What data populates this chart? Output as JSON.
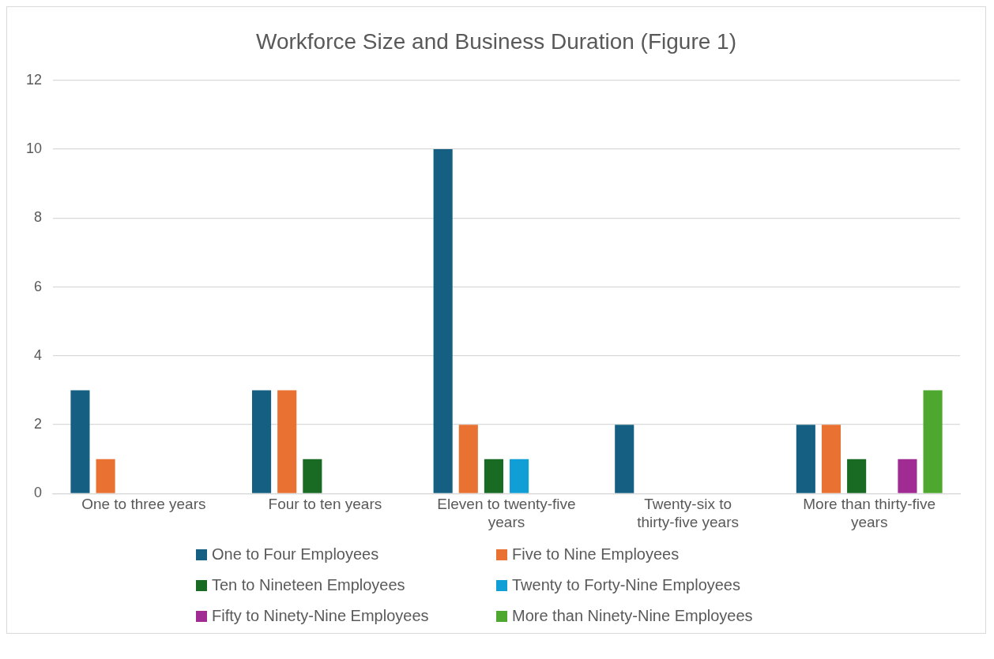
{
  "chart_data": {
    "type": "bar",
    "title": "Workforce Size and Business Duration (Figure 1)",
    "categories": [
      "One to three years",
      "Four to ten years",
      "Eleven to twenty-five years",
      "Twenty-six to thirty-five years",
      "More than thirty-five years"
    ],
    "series": [
      {
        "name": "One to Four Employees",
        "color": "#156082",
        "values": [
          3,
          3,
          10,
          2,
          2
        ]
      },
      {
        "name": "Five to Nine Employees",
        "color": "#e97132",
        "values": [
          1,
          3,
          2,
          0,
          2
        ]
      },
      {
        "name": "Ten to Nineteen Employees",
        "color": "#196b24",
        "values": [
          0,
          1,
          1,
          0,
          1
        ]
      },
      {
        "name": "Twenty to Forty-Nine Employees",
        "color": "#0f9ed5",
        "values": [
          0,
          0,
          1,
          0,
          0
        ]
      },
      {
        "name": "Fifty to Ninety-Nine Employees",
        "color": "#a02b93",
        "values": [
          0,
          0,
          0,
          0,
          1
        ]
      },
      {
        "name": "More than Ninety-Nine Employees",
        "color": "#4ea72e",
        "values": [
          0,
          0,
          0,
          0,
          3
        ]
      }
    ],
    "ylim": [
      0,
      12
    ],
    "yticks": [
      0,
      2,
      4,
      6,
      8,
      10,
      12
    ],
    "grid": "y",
    "legend": "bottom"
  }
}
